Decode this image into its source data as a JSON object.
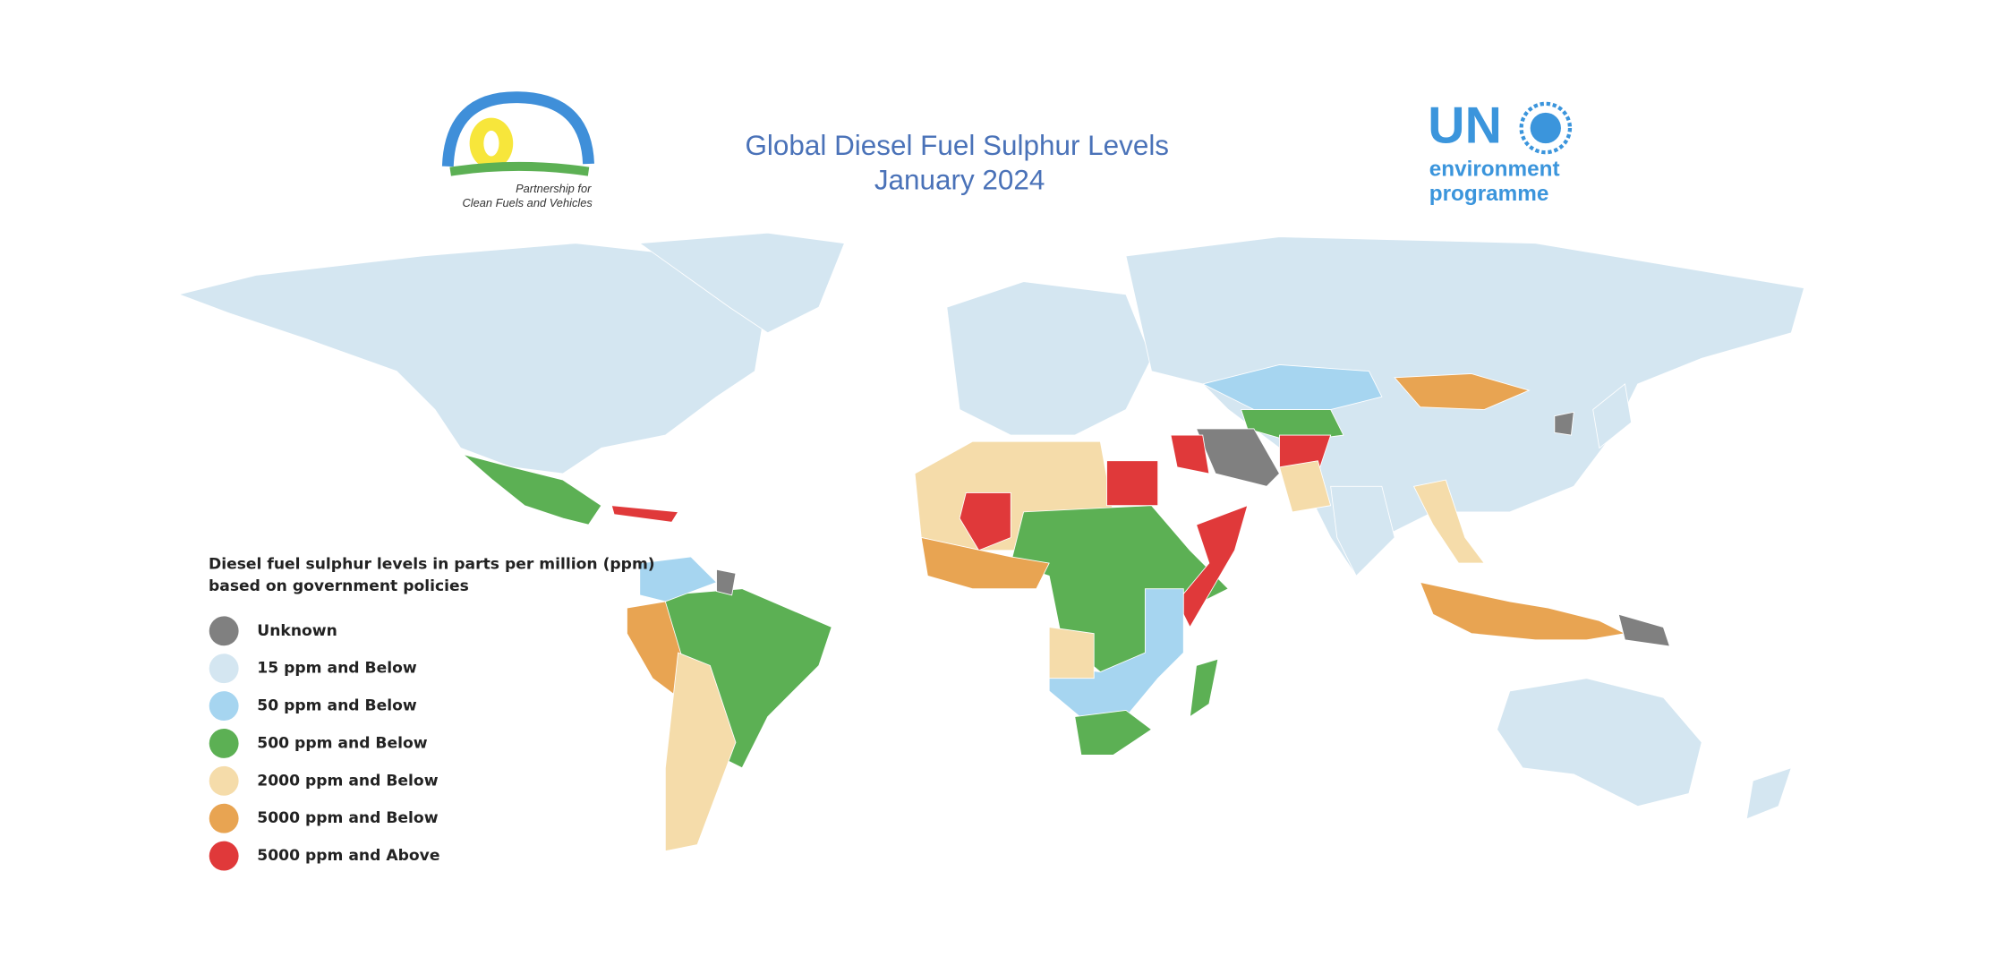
{
  "header": {
    "title": "Global Diesel Fuel Sulphur Levels",
    "subtitle": "January 2024"
  },
  "logos": {
    "left": {
      "line1": "Partnership for",
      "line2": "Clean Fuels and Vehicles"
    },
    "right": {
      "mark": "UN",
      "line1": "environment",
      "line2": "programme"
    }
  },
  "legend": {
    "title_line1": "Diesel fuel sulphur levels in parts per million (ppm)",
    "title_line2": "based on government policies",
    "items": [
      {
        "label": "Unknown",
        "color": "#808080"
      },
      {
        "label": "15 ppm and Below",
        "color": "#d4e6f1"
      },
      {
        "label": "50 ppm and Below",
        "color": "#a6d5f0"
      },
      {
        "label": "500 ppm and Below",
        "color": "#5cb054"
      },
      {
        "label": "2000 ppm and Below",
        "color": "#f5dcaa"
      },
      {
        "label": "5000 ppm and Below",
        "color": "#e8a452"
      },
      {
        "label": "5000 ppm and Above",
        "color": "#e0393a"
      }
    ]
  }
}
